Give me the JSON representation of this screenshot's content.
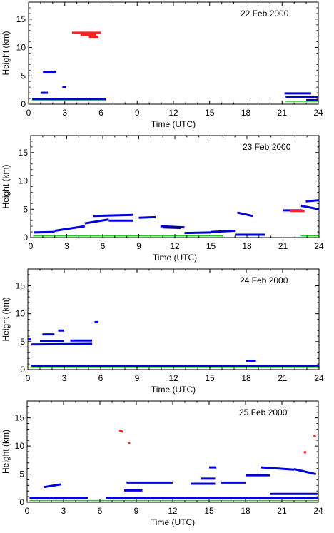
{
  "chart_data": [
    {
      "type": "scatter",
      "date_label": "22 Feb 2000",
      "xlabel": "Time (UTC)",
      "ylabel": "Height (km)",
      "xlim": [
        0,
        24
      ],
      "ylim": [
        0,
        18
      ],
      "xticks": [
        0,
        3,
        6,
        9,
        12,
        15,
        18,
        21,
        24
      ],
      "yticks": [
        0,
        5,
        10,
        15
      ],
      "colors": {
        "low": "#0000dd",
        "high": "#ff2020",
        "surface": "#22cc22",
        "dark": "#000080"
      },
      "series": [
        {
          "color_key": "surface",
          "segments": [
            {
              "x": [
                0.2,
                6.4
              ],
              "y": [
                0.6,
                0.6
              ]
            },
            {
              "x": [
                21.3,
                24
              ],
              "y": [
                0.5,
                0.5
              ]
            }
          ]
        },
        {
          "color_key": "low",
          "segments": [
            {
              "x": [
                1.2,
                2.3
              ],
              "y": [
                5.6,
                5.6
              ]
            },
            {
              "x": [
                1.0,
                1.6
              ],
              "y": [
                2.0,
                2.0
              ]
            },
            {
              "x": [
                2.8,
                3.1
              ],
              "y": [
                3.0,
                3.0
              ]
            },
            {
              "x": [
                0.3,
                6.4
              ],
              "y": [
                0.9,
                0.9
              ]
            },
            {
              "x": [
                21.2,
                23.4
              ],
              "y": [
                1.9,
                1.9
              ]
            },
            {
              "x": [
                21.3,
                24.0
              ],
              "y": [
                1.2,
                1.2
              ]
            },
            {
              "x": [
                23.0,
                24.0
              ],
              "y": [
                0.7,
                0.7
              ]
            }
          ]
        },
        {
          "color_key": "high",
          "segments": [
            {
              "x": [
                3.6,
                6.0
              ],
              "y": [
                12.6,
                12.6
              ]
            },
            {
              "x": [
                4.3,
                5.6
              ],
              "y": [
                12.2,
                12.2
              ]
            },
            {
              "x": [
                5.0,
                5.8
              ],
              "y": [
                11.9,
                11.9
              ]
            }
          ]
        }
      ]
    },
    {
      "type": "scatter",
      "date_label": "23 Feb 2000",
      "xlabel": "Time (UTC)",
      "ylabel": "Height (km)",
      "xlim": [
        0,
        24
      ],
      "ylim": [
        0,
        18
      ],
      "xticks": [
        0,
        3,
        6,
        9,
        12,
        15,
        18,
        21,
        24
      ],
      "yticks": [
        0,
        5,
        10,
        15
      ],
      "colors": {
        "low": "#0000dd",
        "high": "#ff2020",
        "surface": "#22cc22",
        "dark": "#000080"
      },
      "series": [
        {
          "color_key": "surface",
          "segments": [
            {
              "x": [
                0.2,
                16.0
              ],
              "y": [
                0.3,
                0.3
              ]
            },
            {
              "x": [
                22.5,
                24.0
              ],
              "y": [
                0.3,
                0.3
              ]
            }
          ]
        },
        {
          "color_key": "low",
          "segments": [
            {
              "x": [
                0.3,
                2.0
              ],
              "y": [
                0.9,
                1.0
              ]
            },
            {
              "x": [
                2.0,
                4.5
              ],
              "y": [
                1.2,
                2.0
              ]
            },
            {
              "x": [
                4.5,
                6.5
              ],
              "y": [
                2.5,
                3.2
              ]
            },
            {
              "x": [
                5.2,
                8.5
              ],
              "y": [
                3.8,
                4.0
              ]
            },
            {
              "x": [
                6.5,
                8.5
              ],
              "y": [
                3.0,
                3.0
              ]
            },
            {
              "x": [
                9.0,
                10.4
              ],
              "y": [
                3.5,
                3.6
              ]
            },
            {
              "x": [
                10.8,
                12.8
              ],
              "y": [
                2.0,
                1.8
              ]
            },
            {
              "x": [
                12.8,
                15.0
              ],
              "y": [
                0.8,
                0.9
              ]
            },
            {
              "x": [
                15.0,
                17.0
              ],
              "y": [
                1.0,
                1.2
              ]
            },
            {
              "x": [
                17.2,
                18.5
              ],
              "y": [
                4.4,
                3.8
              ]
            },
            {
              "x": [
                17.0,
                19.5
              ],
              "y": [
                0.5,
                0.5
              ]
            },
            {
              "x": [
                21.0,
                22.6
              ],
              "y": [
                4.8,
                4.8
              ]
            },
            {
              "x": [
                22.5,
                24.0
              ],
              "y": [
                5.6,
                5.0
              ]
            },
            {
              "x": [
                22.9,
                24.0
              ],
              "y": [
                6.4,
                6.6
              ]
            }
          ]
        },
        {
          "color_key": "dark",
          "segments": [
            {
              "x": [
                11.0,
                12.5
              ],
              "y": [
                1.8,
                1.7
              ]
            }
          ]
        },
        {
          "color_key": "high",
          "segments": [
            {
              "x": [
                21.6,
                22.8
              ],
              "y": [
                4.7,
                4.7
              ]
            }
          ]
        }
      ]
    },
    {
      "type": "scatter",
      "date_label": "24 Feb 2000",
      "xlabel": "Time (UTC)",
      "ylabel": "Height (km)",
      "xlim": [
        0,
        24
      ],
      "ylim": [
        0,
        18
      ],
      "xticks": [
        0,
        3,
        6,
        9,
        12,
        15,
        18,
        21,
        24
      ],
      "yticks": [
        0,
        5,
        10,
        15
      ],
      "colors": {
        "low": "#0000dd",
        "high": "#ff2020",
        "surface": "#22cc22",
        "dark": "#000080"
      },
      "series": [
        {
          "color_key": "surface",
          "segments": [
            {
              "x": [
                0.2,
                24.0
              ],
              "y": [
                0.4,
                0.4
              ]
            }
          ]
        },
        {
          "color_key": "low",
          "segments": [
            {
              "x": [
                0.0,
                0.3
              ],
              "y": [
                5.4,
                5.4
              ]
            },
            {
              "x": [
                0.3,
                5.3
              ],
              "y": [
                4.5,
                4.6
              ]
            },
            {
              "x": [
                1.0,
                3.0
              ],
              "y": [
                5.1,
                5.1
              ]
            },
            {
              "x": [
                3.5,
                5.3
              ],
              "y": [
                5.2,
                5.2
              ]
            },
            {
              "x": [
                2.5,
                3.0
              ],
              "y": [
                7.0,
                7.0
              ]
            },
            {
              "x": [
                1.2,
                2.2
              ],
              "y": [
                6.3,
                6.3
              ]
            },
            {
              "x": [
                5.5,
                5.8
              ],
              "y": [
                8.5,
                8.5
              ]
            },
            {
              "x": [
                0.3,
                24.0
              ],
              "y": [
                0.7,
                0.7
              ]
            },
            {
              "x": [
                18.0,
                18.8
              ],
              "y": [
                1.6,
                1.6
              ]
            }
          ]
        }
      ]
    },
    {
      "type": "scatter",
      "date_label": "25 Feb 2000",
      "xlabel": "Time (UTC)",
      "ylabel": "Height (km)",
      "xlim": [
        0,
        24
      ],
      "ylim": [
        0,
        18
      ],
      "xticks": [
        0,
        3,
        6,
        9,
        12,
        15,
        18,
        21,
        24
      ],
      "yticks": [
        0,
        5,
        10,
        15
      ],
      "colors": {
        "low": "#0000dd",
        "high": "#ff2020",
        "surface": "#22cc22",
        "dark": "#000080"
      },
      "series": [
        {
          "color_key": "surface",
          "segments": [
            {
              "x": [
                0.2,
                24.0
              ],
              "y": [
                0.3,
                0.3
              ]
            }
          ]
        },
        {
          "color_key": "low",
          "segments": [
            {
              "x": [
                0.2,
                5.0
              ],
              "y": [
                0.8,
                0.8
              ]
            },
            {
              "x": [
                1.4,
                2.8
              ],
              "y": [
                2.7,
                3.2
              ]
            },
            {
              "x": [
                8.2,
                12.0
              ],
              "y": [
                3.5,
                3.5
              ]
            },
            {
              "x": [
                8.0,
                9.5
              ],
              "y": [
                2.1,
                2.1
              ]
            },
            {
              "x": [
                13.5,
                15.5
              ],
              "y": [
                3.3,
                3.3
              ]
            },
            {
              "x": [
                14.3,
                15.5
              ],
              "y": [
                4.2,
                4.2
              ]
            },
            {
              "x": [
                15.0,
                15.6
              ],
              "y": [
                6.2,
                6.2
              ]
            },
            {
              "x": [
                16.0,
                18.0
              ],
              "y": [
                3.5,
                3.5
              ]
            },
            {
              "x": [
                18.0,
                20.0
              ],
              "y": [
                4.8,
                4.8
              ]
            },
            {
              "x": [
                19.3,
                22.0
              ],
              "y": [
                6.2,
                5.8
              ]
            },
            {
              "x": [
                22.0,
                23.8
              ],
              "y": [
                5.9,
                5.0
              ]
            },
            {
              "x": [
                6.5,
                24.0
              ],
              "y": [
                0.8,
                0.8
              ]
            },
            {
              "x": [
                20.0,
                24.0
              ],
              "y": [
                1.5,
                1.5
              ]
            }
          ]
        },
        {
          "color_key": "high",
          "segments": [
            {
              "x": [
                7.6,
                7.9
              ],
              "y": [
                12.8,
                12.5
              ]
            },
            {
              "x": [
                8.3,
                8.5
              ],
              "y": [
                10.6,
                10.6
              ]
            },
            {
              "x": [
                23.6,
                23.8
              ],
              "y": [
                11.8,
                11.8
              ]
            },
            {
              "x": [
                22.8,
                23.0
              ],
              "y": [
                8.9,
                8.9
              ]
            }
          ]
        }
      ]
    }
  ]
}
